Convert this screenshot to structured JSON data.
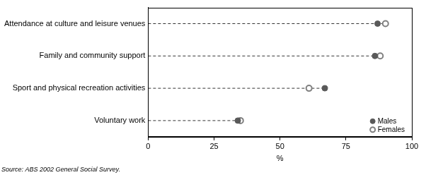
{
  "chart_data": {
    "type": "dot",
    "orientation": "horizontal",
    "categories": [
      "Attendance at culture and leisure venues",
      "Family and community support",
      "Sport and physical recreation activities",
      "Voluntary work"
    ],
    "series": [
      {
        "name": "Males",
        "color": "#595959",
        "marker": "filled_circle",
        "values": [
          87,
          86,
          67,
          34
        ]
      },
      {
        "name": "Females",
        "color": "#808080",
        "marker": "open_circle",
        "values": [
          90,
          88,
          61,
          35
        ]
      }
    ],
    "xlabel": "%",
    "xlim": [
      0,
      100
    ],
    "xticks": [
      0,
      25,
      50,
      75,
      100
    ],
    "grid": false,
    "legend": "lower right",
    "line_style": "dashed",
    "source": "Source: ABS 2002 General Social Survey."
  }
}
